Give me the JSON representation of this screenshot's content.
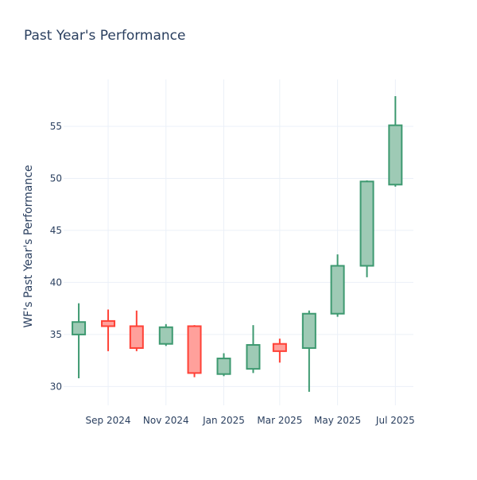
{
  "chart_data": {
    "type": "candlestick",
    "title": "Past Year's Performance",
    "ylabel": "WF's Past Year's Performance",
    "xlabel": "",
    "ylim": [
      28.2,
      59.5
    ],
    "xlim": [
      "2024-07-16",
      "2025-07-20"
    ],
    "y_ticks": [
      30,
      35,
      40,
      45,
      50,
      55
    ],
    "x_ticks": [
      {
        "date": "2024-09-01",
        "label": "Sep 2024"
      },
      {
        "date": "2024-11-01",
        "label": "Nov 2024"
      },
      {
        "date": "2025-01-01",
        "label": "Jan 2025"
      },
      {
        "date": "2025-03-01",
        "label": "Mar 2025"
      },
      {
        "date": "2025-05-01",
        "label": "May 2025"
      },
      {
        "date": "2025-07-01",
        "label": "Jul 2025"
      }
    ],
    "grid": true,
    "increasing_color": "#3d9970",
    "increasing_fill": "#9ecab5",
    "decreasing_color": "#ff4136",
    "decreasing_fill": "#ffa09b",
    "candles": [
      {
        "date": "2024-08-01",
        "open": 35.0,
        "high": 38.0,
        "low": 30.8,
        "close": 36.2
      },
      {
        "date": "2024-09-01",
        "open": 36.3,
        "high": 37.4,
        "low": 33.4,
        "close": 35.8
      },
      {
        "date": "2024-10-01",
        "open": 35.8,
        "high": 37.3,
        "low": 33.4,
        "close": 33.7
      },
      {
        "date": "2024-11-01",
        "open": 34.1,
        "high": 36.0,
        "low": 33.9,
        "close": 35.7
      },
      {
        "date": "2024-12-01",
        "open": 35.8,
        "high": 35.9,
        "low": 30.9,
        "close": 31.3
      },
      {
        "date": "2025-01-01",
        "open": 31.2,
        "high": 33.2,
        "low": 31.0,
        "close": 32.7
      },
      {
        "date": "2025-02-01",
        "open": 31.7,
        "high": 35.9,
        "low": 31.3,
        "close": 34.0
      },
      {
        "date": "2025-03-01",
        "open": 34.1,
        "high": 34.6,
        "low": 32.3,
        "close": 33.4
      },
      {
        "date": "2025-04-01",
        "open": 33.7,
        "high": 37.3,
        "low": 29.5,
        "close": 37.0
      },
      {
        "date": "2025-05-01",
        "open": 37.0,
        "high": 42.7,
        "low": 36.7,
        "close": 41.6
      },
      {
        "date": "2025-06-01",
        "open": 41.6,
        "high": 49.8,
        "low": 40.5,
        "close": 49.7
      },
      {
        "date": "2025-07-01",
        "open": 49.4,
        "high": 57.9,
        "low": 49.2,
        "close": 55.1
      }
    ]
  }
}
